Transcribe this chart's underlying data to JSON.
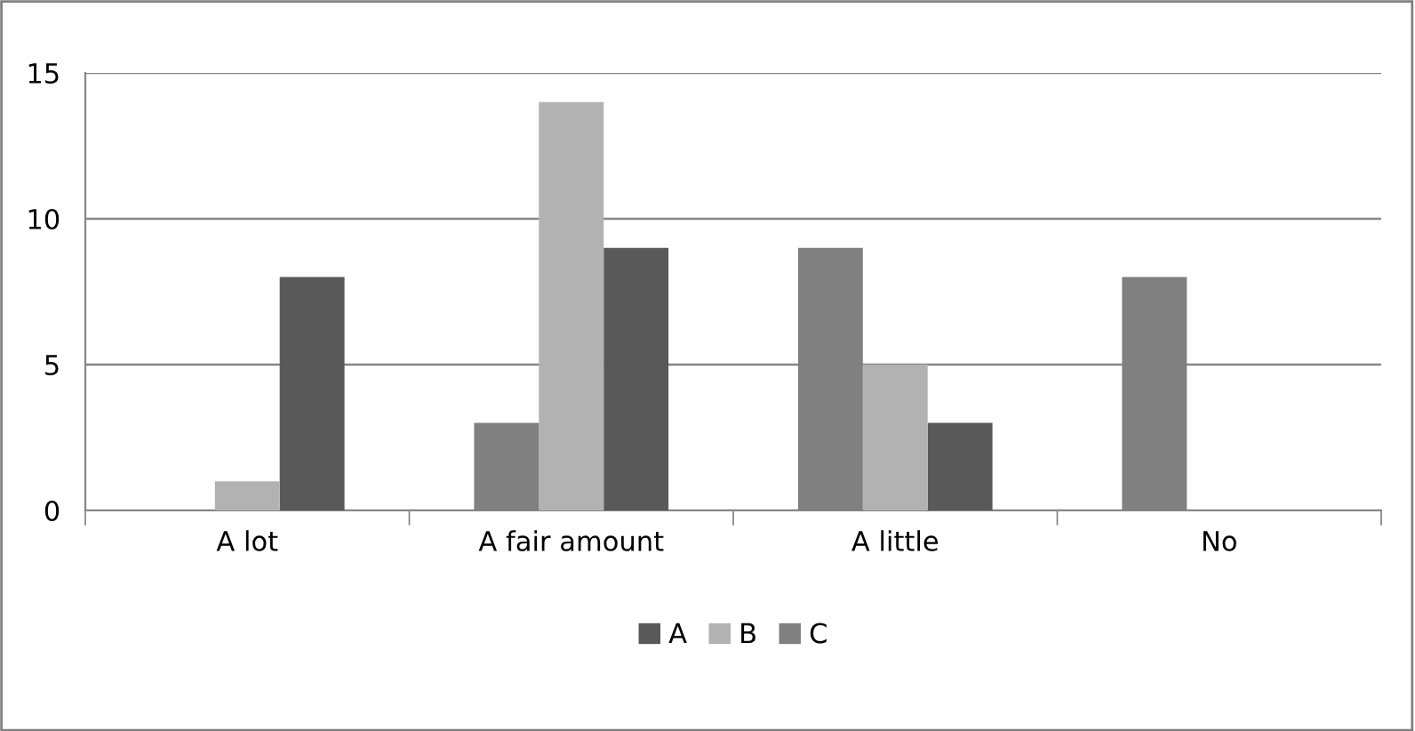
{
  "chart_data": {
    "type": "bar",
    "categories": [
      "A lot",
      "A fair amount",
      "A little",
      "No"
    ],
    "series": [
      {
        "name": "A",
        "color": "#595959",
        "values": [
          8,
          9,
          3,
          0
        ]
      },
      {
        "name": "B",
        "color": "#b2b2b2",
        "values": [
          1,
          14,
          5,
          0
        ]
      },
      {
        "name": "C",
        "color": "#808080",
        "values": [
          0,
          3,
          9,
          8
        ]
      }
    ],
    "ylim": [
      0,
      15
    ],
    "yticks": [
      0,
      5,
      10,
      15
    ],
    "grid": "y",
    "legend": "bottom"
  }
}
